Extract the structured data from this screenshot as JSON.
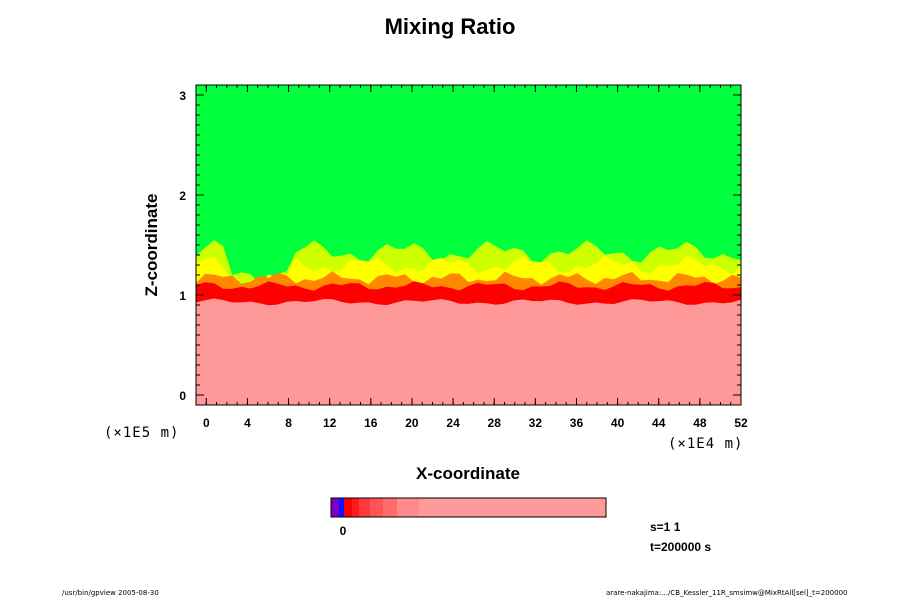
{
  "chart_data": {
    "type": "heatmap",
    "title": "Mixing Ratio",
    "xlabel": "X-coordinate",
    "ylabel": "Z-coordinate",
    "x_scale_note": "(×1E4 m)",
    "y_scale_note": "(×1E5 m)",
    "xlim": [
      -1,
      52
    ],
    "ylim": [
      -0.1,
      3.1
    ],
    "x_ticks": [
      0,
      4,
      8,
      12,
      16,
      20,
      24,
      28,
      32,
      36,
      40,
      44,
      48,
      52
    ],
    "y_ticks": [
      0,
      1,
      2,
      3
    ],
    "colorbar": {
      "colors": [
        "#7a00c8",
        "#0a14ff",
        "#ff0000",
        "#ff1a1a",
        "#ff3a3a",
        "#ff5555",
        "#ff6b6b",
        "#ff8a8a",
        "#ff9a9a"
      ],
      "label": "0"
    },
    "layers": [
      {
        "color": "#00ff3c"
      },
      {
        "color": "#ccff00"
      },
      {
        "color": "#ffff00"
      },
      {
        "color": "#ff8800"
      },
      {
        "color": "#ff0000"
      },
      {
        "color": "#ff9999"
      }
    ]
  },
  "info": {
    "s": "s=1 1",
    "t": "t=200000 s"
  },
  "footer": {
    "left": "/usr/bin/gpview 2005-08-30",
    "right": "arare-nakajima:.../CB_Kessler_11R_smsimw@MixRtAll[sel]_t=200000"
  }
}
